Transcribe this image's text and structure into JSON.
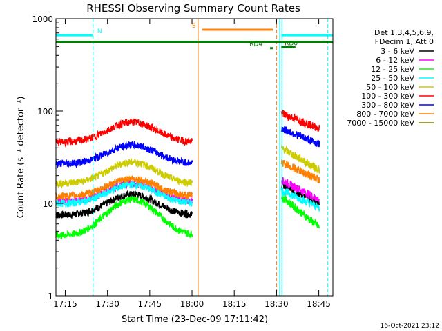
{
  "chart_data": {
    "type": "line",
    "title": "RHESSI Observing Summary Count Rates",
    "xlabel": "Start Time (23-Dec-09 17:11:42)",
    "ylabel": "Count Rate (s⁻¹ detector⁻¹)",
    "x_unit": "minutes since 17:11:42",
    "xlim": [
      0,
      98.3
    ],
    "ylim": [
      1,
      1000
    ],
    "yscale": "log",
    "x_tick_labels": [
      "17:15",
      "17:30",
      "17:45",
      "18:00",
      "18:15",
      "18:30",
      "18:45"
    ],
    "x_tick_values": [
      3.3,
      18.3,
      33.3,
      48.3,
      63.3,
      78.3,
      93.3
    ],
    "y_tick_labels": [
      "1",
      "10",
      "100",
      "1000"
    ],
    "y_tick_values": [
      1,
      10,
      100,
      1000
    ],
    "legend_title": [
      "Det 1,3,4,5,6,9,",
      "FDecim 1, Att 0"
    ],
    "legend_position": "right",
    "timestamp": "16-Oct-2021 23:12",
    "series": [
      {
        "name": "3 - 6 keV",
        "color": "#000000",
        "segment1": {
          "t0": 0,
          "t1": 48.5,
          "base": 7.5,
          "peak": 12.5
        },
        "segment2": {
          "t0": 80,
          "t1": 93.5,
          "start": 16,
          "end": 10
        }
      },
      {
        "name": "6 - 12 keV",
        "color": "#ff00ff",
        "segment1": {
          "t0": 0,
          "t1": 48.5,
          "base": 10.5,
          "peak": 16.5
        },
        "segment2": {
          "t0": 80,
          "t1": 93.5,
          "start": 18,
          "end": 11
        }
      },
      {
        "name": "12 - 25 keV",
        "color": "#00ff00",
        "segment1": {
          "t0": 0,
          "t1": 48.5,
          "base": 4.5,
          "peak": 11
        },
        "segment2": {
          "t0": 80,
          "t1": 93.5,
          "start": 12,
          "end": 5.5
        }
      },
      {
        "name": "25 - 50 keV",
        "color": "#00ffff",
        "segment1": {
          "t0": 0,
          "t1": 48.5,
          "base": 10,
          "peak": 16
        },
        "segment2": {
          "t0": 80,
          "t1": 93.5,
          "start": 14,
          "end": 9
        }
      },
      {
        "name": "50 - 100 keV",
        "color": "#cccc00",
        "segment1": {
          "t0": 0,
          "t1": 48.5,
          "base": 16.5,
          "peak": 28
        },
        "segment2": {
          "t0": 80,
          "t1": 93.5,
          "start": 40,
          "end": 23
        }
      },
      {
        "name": "100 - 300 keV",
        "color": "#ff0000",
        "segment1": {
          "t0": 0,
          "t1": 48.5,
          "base": 46,
          "peak": 76
        },
        "segment2": {
          "t0": 80,
          "t1": 93.5,
          "start": 95,
          "end": 65
        }
      },
      {
        "name": "300 - 800 keV",
        "color": "#0000ff",
        "segment1": {
          "t0": 0,
          "t1": 48.5,
          "base": 27,
          "peak": 43
        },
        "segment2": {
          "t0": 80,
          "t1": 93.5,
          "start": 65,
          "end": 44
        }
      },
      {
        "name": "800 - 7000 keV",
        "color": "#ff8000",
        "segment1": {
          "t0": 0,
          "t1": 48.5,
          "base": 12,
          "peak": 18.5
        },
        "segment2": {
          "t0": 80,
          "t1": 93.5,
          "start": 28,
          "end": 18
        }
      },
      {
        "name": "7000 - 15000 keV",
        "color": "#808000"
      }
    ],
    "flag_bars": [
      {
        "label": "N",
        "color": "#00ffff",
        "t0": 0,
        "t1": 13,
        "y": 660,
        "label_t": 15.5
      },
      {
        "label": "S",
        "color": "#ff8000",
        "t0": 52,
        "t1": 77,
        "y": 760,
        "label_t": 49
      },
      {
        "label": "",
        "color": "#008000",
        "t0": 0,
        "t1": 98.3,
        "y": 560
      },
      {
        "label": "RD4",
        "color": "#008000",
        "t0": 76,
        "t1": 77,
        "y": 480,
        "label_t": 71
      },
      {
        "label": "RD0",
        "color": "#008000",
        "t0": 80,
        "t1": 85,
        "y": 490,
        "label_t": 83.5
      },
      {
        "label": "",
        "color": "#00ffff",
        "t0": 80,
        "t1": 98.3,
        "y": 660
      }
    ],
    "vertical_markers": [
      {
        "t": 13.2,
        "color": "#00ffff",
        "style": "dashed"
      },
      {
        "t": 79.4,
        "color": "#00ffff",
        "style": "solid"
      },
      {
        "t": 80.2,
        "color": "#00ffff",
        "style": "solid"
      },
      {
        "t": 96.5,
        "color": "#00ffff",
        "style": "dashed"
      },
      {
        "t": 50.5,
        "color": "#ff8000",
        "style": "solid"
      },
      {
        "t": 78.3,
        "color": "#ff8000",
        "style": "dashed"
      }
    ]
  }
}
